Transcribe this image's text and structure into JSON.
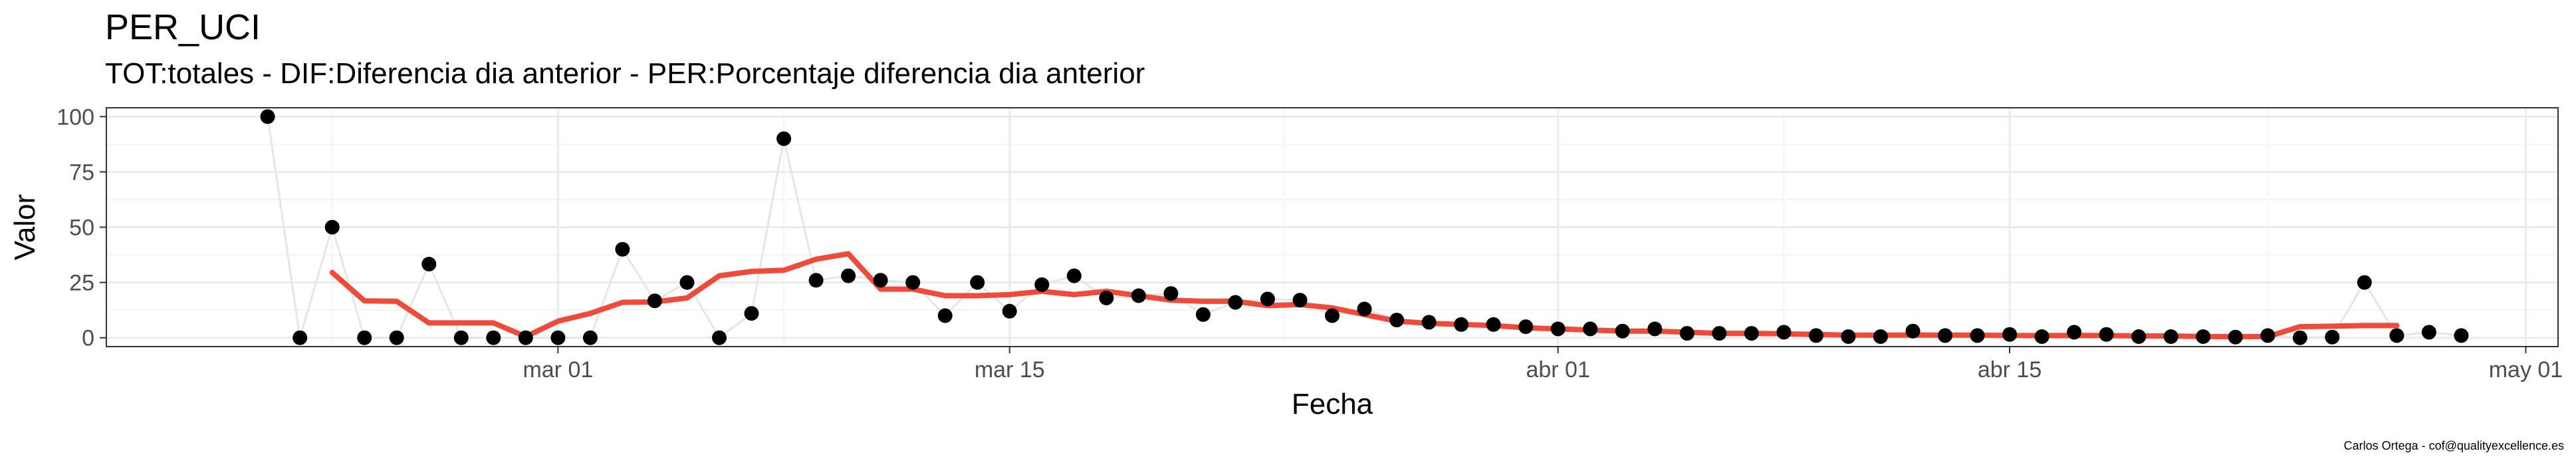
{
  "chart_data": {
    "type": "line",
    "title": "PER_UCI",
    "subtitle": "TOT:totales - DIF:Diferencia dia anterior - PER:Porcentaje diferencia dia anterior",
    "xlabel": "Fecha",
    "ylabel": "Valor",
    "caption": "Carlos Ortega - cof@qualityexcellence.es",
    "x_type": "date",
    "xlim": [
      "2020-02-16",
      "2020-05-02"
    ],
    "ylim": [
      -4,
      104
    ],
    "x_ticks": [
      {
        "date": "2020-03-01",
        "label": "mar 01"
      },
      {
        "date": "2020-03-15",
        "label": "mar 15"
      },
      {
        "date": "2020-04-01",
        "label": "abr 01"
      },
      {
        "date": "2020-04-15",
        "label": "abr 15"
      },
      {
        "date": "2020-05-01",
        "label": "may 01"
      }
    ],
    "y_ticks": [
      0,
      25,
      50,
      75,
      100
    ],
    "grid": true,
    "colors": {
      "points": "#000000",
      "raw_line": "#e6e6e6",
      "smooth_line": "#f04a3a",
      "grid_major": "#ebebeb",
      "grid_minor": "#f5f5f5"
    },
    "series": [
      {
        "style": "points-with-thin-line",
        "points": [
          [
            "2020-02-21",
            100
          ],
          [
            "2020-02-22",
            0
          ],
          [
            "2020-02-23",
            50
          ],
          [
            "2020-02-24",
            0
          ],
          [
            "2020-02-25",
            0
          ],
          [
            "2020-02-26",
            33.3
          ],
          [
            "2020-02-27",
            0
          ],
          [
            "2020-02-28",
            0
          ],
          [
            "2020-02-29",
            0
          ],
          [
            "2020-03-01",
            0
          ],
          [
            "2020-03-02",
            0
          ],
          [
            "2020-03-03",
            40
          ],
          [
            "2020-03-04",
            16.7
          ],
          [
            "2020-03-05",
            25
          ],
          [
            "2020-03-06",
            0
          ],
          [
            "2020-03-07",
            11
          ],
          [
            "2020-03-08",
            90
          ],
          [
            "2020-03-09",
            26
          ],
          [
            "2020-03-10",
            28
          ],
          [
            "2020-03-11",
            26
          ],
          [
            "2020-03-12",
            25
          ],
          [
            "2020-03-13",
            10
          ],
          [
            "2020-03-14",
            25
          ],
          [
            "2020-03-15",
            12
          ],
          [
            "2020-03-16",
            24
          ],
          [
            "2020-03-17",
            28
          ],
          [
            "2020-03-18",
            18
          ],
          [
            "2020-03-19",
            19
          ],
          [
            "2020-03-20",
            20
          ],
          [
            "2020-03-21",
            10.5
          ],
          [
            "2020-03-22",
            16
          ],
          [
            "2020-03-23",
            17.5
          ],
          [
            "2020-03-24",
            17
          ],
          [
            "2020-03-25",
            10
          ],
          [
            "2020-03-26",
            13
          ],
          [
            "2020-03-27",
            8
          ],
          [
            "2020-03-28",
            7
          ],
          [
            "2020-03-29",
            6
          ],
          [
            "2020-03-30",
            6
          ],
          [
            "2020-03-31",
            5
          ],
          [
            "2020-04-01",
            4
          ],
          [
            "2020-04-02",
            4
          ],
          [
            "2020-04-03",
            3
          ],
          [
            "2020-04-04",
            4
          ],
          [
            "2020-04-05",
            2
          ],
          [
            "2020-04-06",
            2
          ],
          [
            "2020-04-07",
            2
          ],
          [
            "2020-04-08",
            2.5
          ],
          [
            "2020-04-09",
            1
          ],
          [
            "2020-04-10",
            0.5
          ],
          [
            "2020-04-11",
            0.5
          ],
          [
            "2020-04-12",
            3
          ],
          [
            "2020-04-13",
            1
          ],
          [
            "2020-04-14",
            1
          ],
          [
            "2020-04-15",
            1.5
          ],
          [
            "2020-04-16",
            0.5
          ],
          [
            "2020-04-17",
            2.5
          ],
          [
            "2020-04-18",
            1.5
          ],
          [
            "2020-04-19",
            0.5
          ],
          [
            "2020-04-20",
            0.5
          ],
          [
            "2020-04-21",
            0.5
          ],
          [
            "2020-04-22",
            0.3
          ],
          [
            "2020-04-23",
            1
          ],
          [
            "2020-04-24",
            0
          ],
          [
            "2020-04-25",
            0.3
          ],
          [
            "2020-04-26",
            25
          ],
          [
            "2020-04-27",
            1
          ],
          [
            "2020-04-28",
            2.5
          ],
          [
            "2020-04-29",
            1
          ]
        ]
      },
      {
        "style": "smoothed-line",
        "points": [
          [
            "2020-02-23",
            29.5
          ],
          [
            "2020-02-24",
            16.7
          ],
          [
            "2020-02-25",
            16.5
          ],
          [
            "2020-02-26",
            6.7
          ],
          [
            "2020-02-27",
            6.7
          ],
          [
            "2020-02-28",
            6.7
          ],
          [
            "2020-02-29",
            0.5
          ],
          [
            "2020-03-01",
            7.5
          ],
          [
            "2020-03-02",
            11
          ],
          [
            "2020-03-03",
            16
          ],
          [
            "2020-03-04",
            16.2
          ],
          [
            "2020-03-05",
            18
          ],
          [
            "2020-03-06",
            28
          ],
          [
            "2020-03-07",
            30
          ],
          [
            "2020-03-08",
            30.5
          ],
          [
            "2020-03-09",
            35.5
          ],
          [
            "2020-03-10",
            38
          ],
          [
            "2020-03-11",
            22
          ],
          [
            "2020-03-12",
            22
          ],
          [
            "2020-03-13",
            19
          ],
          [
            "2020-03-14",
            19
          ],
          [
            "2020-03-15",
            19.5
          ],
          [
            "2020-03-16",
            21
          ],
          [
            "2020-03-17",
            19.5
          ],
          [
            "2020-03-18",
            21
          ],
          [
            "2020-03-19",
            19
          ],
          [
            "2020-03-20",
            17
          ],
          [
            "2020-03-21",
            16.5
          ],
          [
            "2020-03-22",
            16.5
          ],
          [
            "2020-03-23",
            14.5
          ],
          [
            "2020-03-24",
            15
          ],
          [
            "2020-03-25",
            13.5
          ],
          [
            "2020-03-26",
            10.5
          ],
          [
            "2020-03-27",
            7.5
          ],
          [
            "2020-03-28",
            6.5
          ],
          [
            "2020-03-29",
            6
          ],
          [
            "2020-03-30",
            5.5
          ],
          [
            "2020-03-31",
            4.5
          ],
          [
            "2020-04-01",
            4
          ],
          [
            "2020-04-02",
            3.5
          ],
          [
            "2020-04-03",
            3
          ],
          [
            "2020-04-04",
            3
          ],
          [
            "2020-04-05",
            2.5
          ],
          [
            "2020-04-06",
            2
          ],
          [
            "2020-04-07",
            2
          ],
          [
            "2020-04-08",
            1.8
          ],
          [
            "2020-04-09",
            1.5
          ],
          [
            "2020-04-10",
            1.2
          ],
          [
            "2020-04-11",
            1.2
          ],
          [
            "2020-04-12",
            1.2
          ],
          [
            "2020-04-13",
            1.2
          ],
          [
            "2020-04-14",
            1.2
          ],
          [
            "2020-04-15",
            1
          ],
          [
            "2020-04-16",
            1
          ],
          [
            "2020-04-17",
            1
          ],
          [
            "2020-04-18",
            1
          ],
          [
            "2020-04-19",
            0.8
          ],
          [
            "2020-04-20",
            0.8
          ],
          [
            "2020-04-21",
            0.5
          ],
          [
            "2020-04-22",
            0.5
          ],
          [
            "2020-04-23",
            0.5
          ],
          [
            "2020-04-24",
            5
          ],
          [
            "2020-04-25",
            5.2
          ],
          [
            "2020-04-26",
            5.5
          ],
          [
            "2020-04-27",
            5.5
          ]
        ]
      }
    ]
  }
}
